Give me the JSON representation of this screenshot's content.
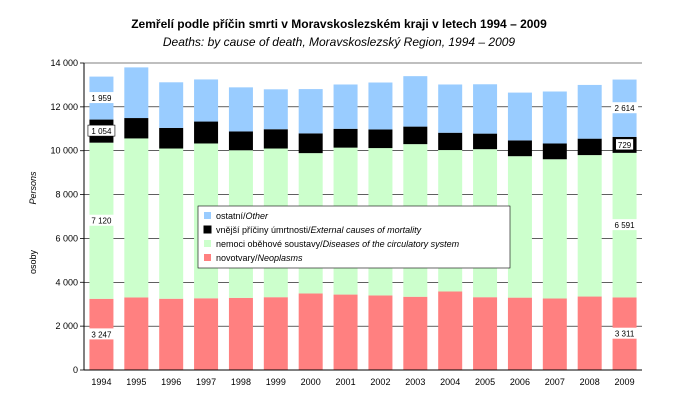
{
  "chart_data": {
    "type": "bar",
    "stacked": true,
    "title": "Zemřelí podle příčin smrti v Moravskoslezském kraji v letech 1994 – 2009",
    "subtitle": "Deaths: by cause of death, Moravskoslezský Region, 1994 – 2009",
    "ylabel_cs": "osoby",
    "ylabel_en": "Persons",
    "ylim": [
      0,
      14000
    ],
    "yticks": [
      "0",
      "2 000",
      "4 000",
      "6 000",
      "8 000",
      "10 000",
      "12 000",
      "14 000"
    ],
    "grid": true,
    "categories": [
      "1994",
      "1995",
      "1996",
      "1997",
      "1998",
      "1999",
      "2000",
      "2001",
      "2002",
      "2003",
      "2004",
      "2005",
      "2006",
      "2007",
      "2008",
      "2009"
    ],
    "series": [
      {
        "name_cs": "novotvary/",
        "name_en": "Neoplasms",
        "color": "#ff8080",
        "values": [
          3247,
          3310,
          3250,
          3270,
          3290,
          3320,
          3490,
          3440,
          3400,
          3340,
          3580,
          3320,
          3300,
          3260,
          3350,
          3311
        ]
      },
      {
        "name_cs": "nemoci oběhové soustavy/",
        "name_en": "Diseases of the circulatory system",
        "color": "#ccffcc",
        "values": [
          7120,
          7250,
          6850,
          7060,
          6730,
          6780,
          6400,
          6700,
          6720,
          6960,
          6450,
          6750,
          6450,
          6350,
          6450,
          6591
        ]
      },
      {
        "name_cs": "vnější příčiny úmrtnosti/",
        "name_en": "External causes of mortality",
        "color": "#000000",
        "values": [
          1054,
          930,
          940,
          1000,
          860,
          880,
          900,
          860,
          850,
          800,
          790,
          710,
          720,
          720,
          750,
          729
        ]
      },
      {
        "name_cs": "ostatní/",
        "name_en": "Other",
        "color": "#99ccff",
        "values": [
          1959,
          2310,
          2080,
          1920,
          2010,
          1820,
          2020,
          2020,
          2140,
          2300,
          2200,
          2250,
          2180,
          2370,
          2450,
          2614
        ]
      }
    ],
    "data_labels": {
      "first": [
        "3 247",
        "7 120",
        "1 054",
        "1 959"
      ],
      "last": [
        "3 311",
        "6 591",
        "729",
        "2 614"
      ]
    },
    "legend_placement": "center"
  }
}
